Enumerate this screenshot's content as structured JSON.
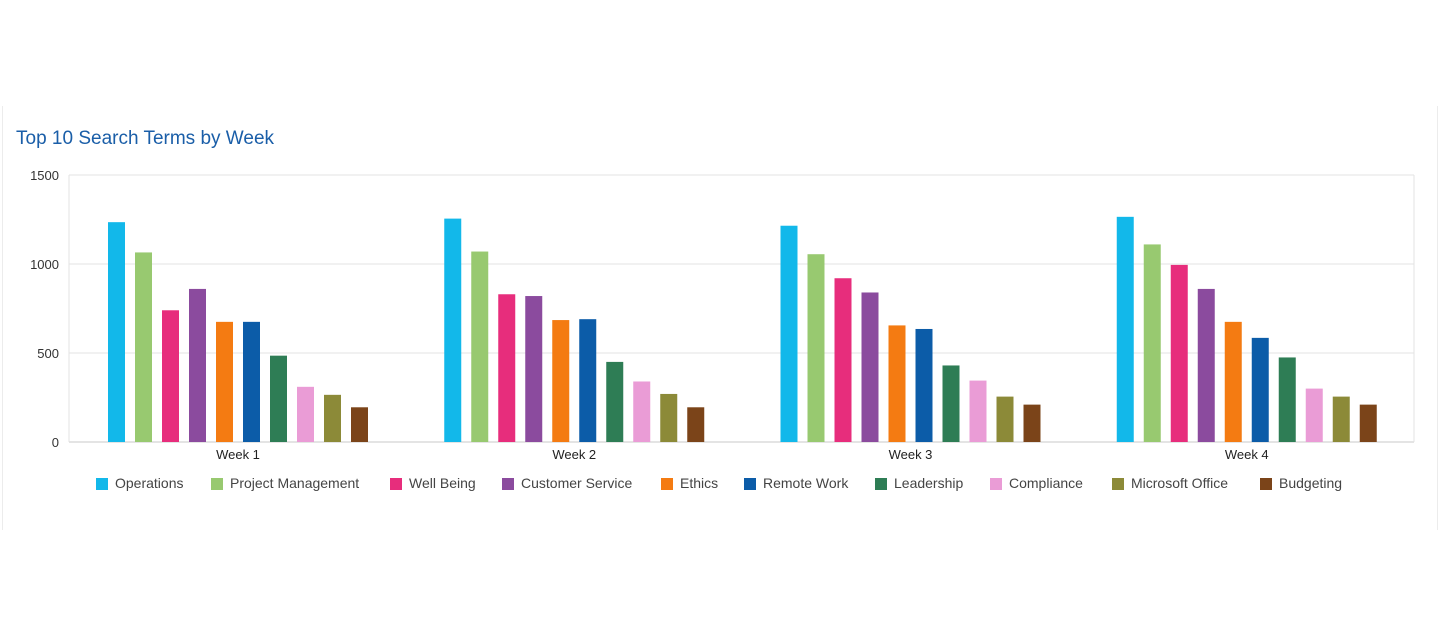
{
  "chart_data": {
    "type": "bar",
    "title": "Top 10 Search Terms by Week",
    "categories": [
      "Week 1",
      "Week 2",
      "Week 3",
      "Week 4"
    ],
    "ylim": [
      0,
      1500
    ],
    "yticks": [
      0,
      500,
      1000,
      1500
    ],
    "grid": true,
    "legend_position": "bottom",
    "series": [
      {
        "name": "Operations",
        "color": "#12b8ea",
        "values": [
          1235,
          1255,
          1215,
          1265
        ]
      },
      {
        "name": "Project Management",
        "color": "#98c970",
        "values": [
          1065,
          1070,
          1055,
          1110
        ]
      },
      {
        "name": "Well Being",
        "color": "#e72d7c",
        "values": [
          740,
          830,
          920,
          995
        ]
      },
      {
        "name": "Customer Service",
        "color": "#8b4b9e",
        "values": [
          860,
          820,
          840,
          860
        ]
      },
      {
        "name": "Ethics",
        "color": "#f47b12",
        "values": [
          675,
          685,
          655,
          675
        ]
      },
      {
        "name": "Remote Work",
        "color": "#0c5ca8",
        "values": [
          675,
          690,
          635,
          585
        ]
      },
      {
        "name": "Leadership",
        "color": "#2e7d55",
        "values": [
          485,
          450,
          430,
          475
        ]
      },
      {
        "name": "Compliance",
        "color": "#ea9cd6",
        "values": [
          310,
          340,
          345,
          300
        ]
      },
      {
        "name": "Microsoft Office",
        "color": "#8c8a38",
        "values": [
          265,
          270,
          255,
          255
        ]
      },
      {
        "name": "Budgeting",
        "color": "#7b4419",
        "values": [
          195,
          195,
          210,
          210
        ]
      }
    ]
  }
}
